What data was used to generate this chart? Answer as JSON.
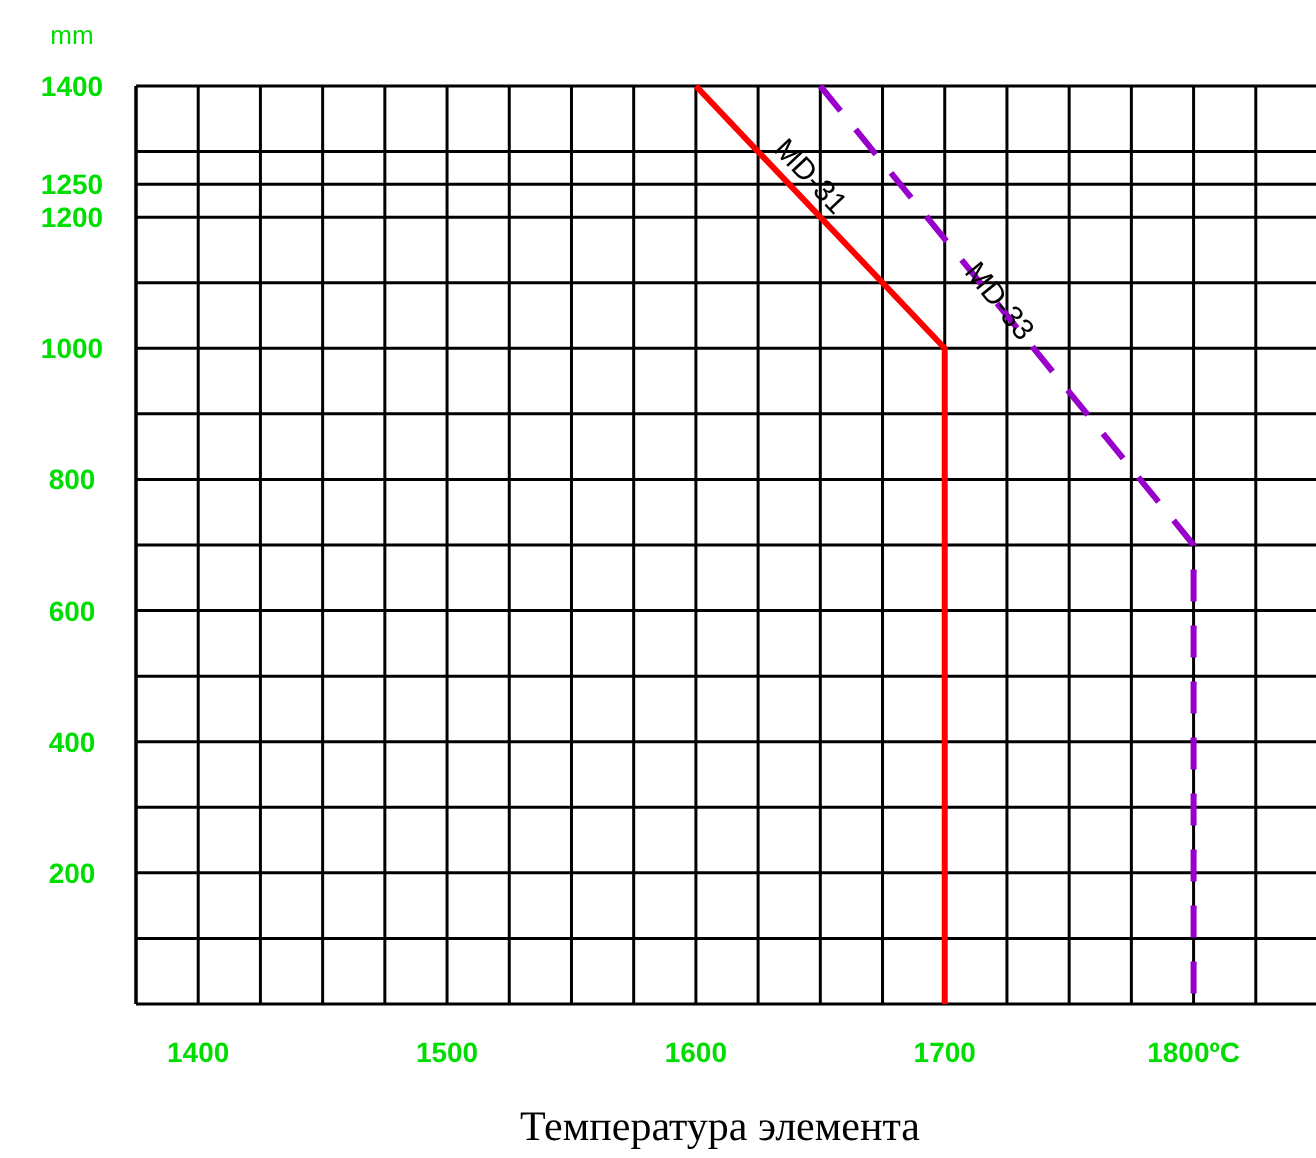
{
  "chart_data": {
    "type": "line",
    "ylabel": "mm",
    "xlabel": "Температура элемента",
    "xlim": [
      1375,
      1850
    ],
    "xticks": [
      {
        "value": 1375,
        "label": null
      },
      1400,
      {
        "value": 1425,
        "label": null
      },
      {
        "value": 1450,
        "label": null
      },
      {
        "value": 1475,
        "label": null
      },
      1500,
      {
        "value": 1525,
        "label": null
      },
      {
        "value": 1550,
        "label": null
      },
      {
        "value": 1575,
        "label": null
      },
      1600,
      {
        "value": 1625,
        "label": null
      },
      {
        "value": 1650,
        "label": null
      },
      {
        "value": 1675,
        "label": null
      },
      1700,
      {
        "value": 1725,
        "label": null
      },
      {
        "value": 1750,
        "label": null
      },
      {
        "value": 1775,
        "label": null
      },
      {
        "value": 1800,
        "label": "1800ºC"
      },
      {
        "value": 1825,
        "label": null
      }
    ],
    "ylim": [
      0,
      1400
    ],
    "yticks": [
      {
        "value": 100,
        "label": null
      },
      200,
      {
        "value": 300,
        "label": null
      },
      400,
      {
        "value": 500,
        "label": null
      },
      600,
      {
        "value": 700,
        "label": null
      },
      800,
      {
        "value": 900,
        "label": null
      },
      1000,
      {
        "value": 1100,
        "label": null
      },
      1200,
      1250,
      {
        "value": 1300,
        "label": null
      },
      1400
    ],
    "grid": true,
    "series": [
      {
        "name": "MD-31",
        "color": "#ff0000",
        "x": [
          1600,
          1700,
          1700
        ],
        "values": [
          1400,
          1000,
          0
        ],
        "line_style": "solid"
      },
      {
        "name": "MD-33",
        "color": "#9900cc",
        "x": [
          1650,
          1800,
          1800
        ],
        "values": [
          1400,
          700,
          0
        ],
        "line_style": "dashed"
      }
    ]
  }
}
